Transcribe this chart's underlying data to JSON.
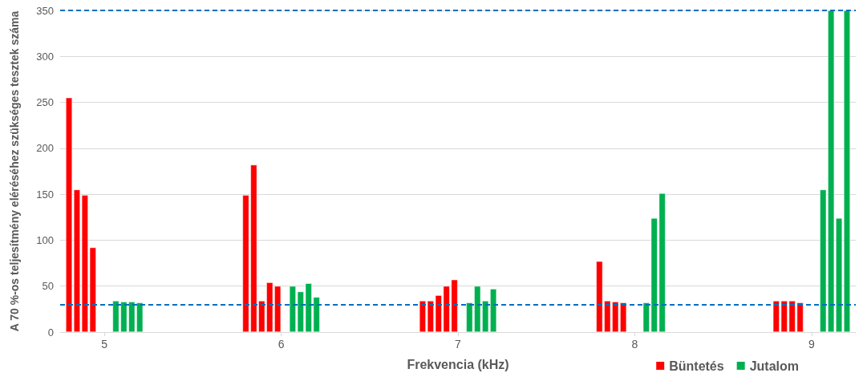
{
  "chart_data": {
    "type": "bar",
    "xlabel": "Frekvencia (kHz)",
    "ylabel": "A 70 %-os teljesítmény eléréséhez szükséges tesztek száma",
    "xlim": [
      4.75,
      9.25
    ],
    "xticks": [
      5,
      6,
      7,
      8,
      9
    ],
    "ylim": [
      0,
      350
    ],
    "yticks": [
      0,
      50,
      100,
      150,
      200,
      250,
      300,
      350
    ],
    "series": [
      {
        "name": "Büntetés",
        "color": "#ff0000",
        "x": [
          4.8,
          4.845,
          4.89,
          4.935,
          5.8,
          5.845,
          5.89,
          5.935,
          5.98,
          6.8,
          6.845,
          6.89,
          6.935,
          6.98,
          7.8,
          7.845,
          7.89,
          7.935,
          8.8,
          8.845,
          8.89,
          8.935
        ],
        "values": [
          255,
          155,
          149,
          92,
          149,
          182,
          34,
          54,
          50,
          34,
          34,
          40,
          50,
          57,
          77,
          34,
          33,
          32,
          34,
          34,
          34,
          32
        ]
      },
      {
        "name": "Jutalom",
        "color": "#00b050",
        "x": [
          5.065,
          5.11,
          5.155,
          5.2,
          6.065,
          6.11,
          6.155,
          6.2,
          7.065,
          7.11,
          7.155,
          7.2,
          8.065,
          8.11,
          8.155,
          9.065,
          9.11,
          9.155,
          9.2
        ],
        "values": [
          34,
          33,
          33,
          32,
          50,
          44,
          53,
          38,
          32,
          50,
          34,
          47,
          32,
          124,
          151,
          155,
          350,
          124,
          350
        ]
      }
    ],
    "ref_lines": [
      {
        "axis": "y",
        "value": 30,
        "color": "#0070c0",
        "line_style": "dashed"
      },
      {
        "axis": "y",
        "value": 350,
        "color": "#0070c0",
        "line_style": "dashed"
      }
    ],
    "grid": "y",
    "legend": "bottom right"
  }
}
